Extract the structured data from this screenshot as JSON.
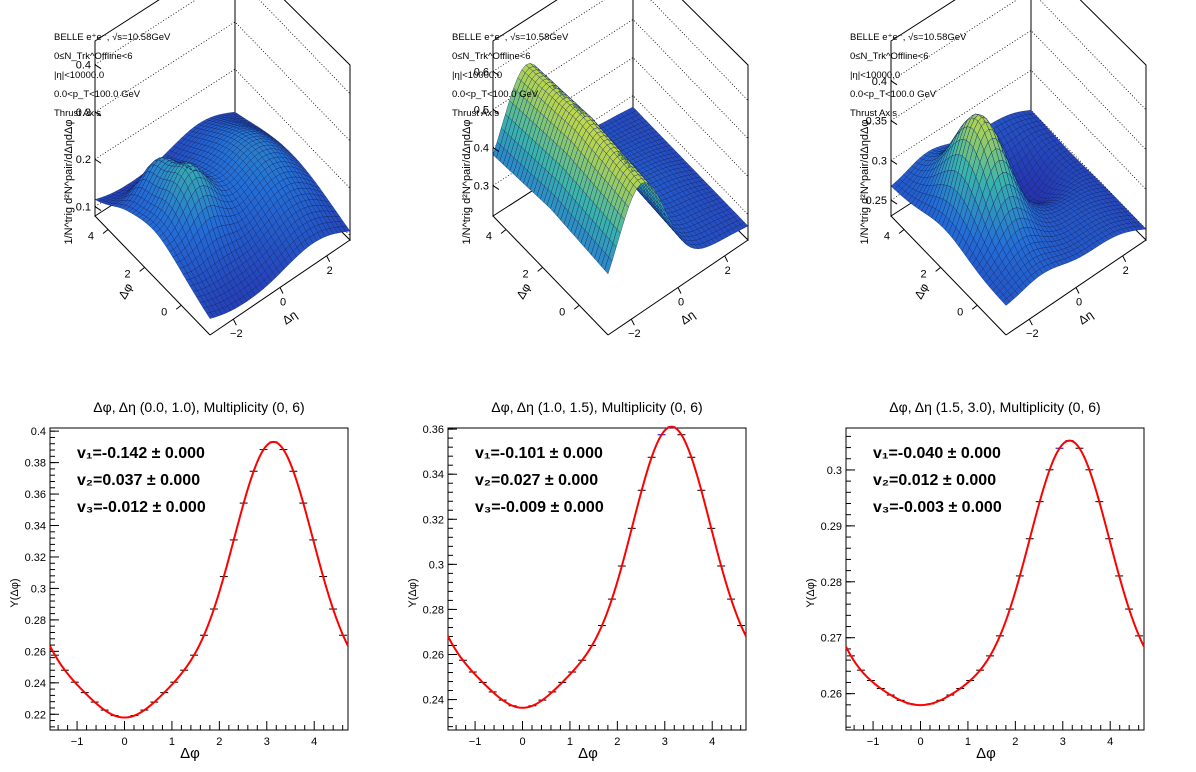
{
  "colors": {
    "fit": "#ff0000",
    "points": "#000000",
    "peak_points": "#0000cc",
    "surface_low": "#2a3fbf",
    "surface_mid": "#3fb6a8",
    "surface_high": "#f8ef3a"
  },
  "chart_data": [
    {
      "type": "surface3d",
      "info_lines": [
        "BELLE e⁺e⁻, √s=10.58GeV",
        "0≤N_Trk^Offline<6",
        "|η|<10000.0",
        "0.0<p_T<100.0 GeV",
        "Thrust Axis"
      ],
      "zlabel": "1/N^trig d²N^pair/dΔηdΔφ",
      "xlabel": "Δφ",
      "ylabel": "Δη",
      "xticks": [
        "0",
        "2",
        "4"
      ],
      "yticks": [
        "−2",
        "0",
        "2"
      ],
      "zticks": [
        "0.1",
        "0.2",
        "0.3",
        "0.4"
      ],
      "zlim": [
        0.08,
        0.45
      ]
    },
    {
      "type": "surface3d",
      "info_lines": [
        "BELLE e⁺e⁻, √s=10.58GeV",
        "0≤N_Trk^Offline<6",
        "|η|<10000.0",
        "0.0<p_T<100.0 GeV",
        "Thrust Axis"
      ],
      "zlabel": "1/N^trig d²N^pair/dΔηdΔφ",
      "xlabel": "Δφ",
      "ylabel": "Δη",
      "xticks": [
        "0",
        "2",
        "4"
      ],
      "yticks": [
        "−2",
        "0",
        "2"
      ],
      "zticks": [
        "0.3",
        "0.4",
        "0.5",
        "0.6"
      ],
      "zlim": [
        0.22,
        0.68
      ]
    },
    {
      "type": "surface3d",
      "info_lines": [
        "BELLE e⁺e⁻, √s=10.58GeV",
        "0≤N_Trk^Offline<6",
        "|η|<10000.0",
        "0.0<p_T<100.0 GeV",
        "Thrust Axis"
      ],
      "zlabel": "1/N^trig d²N^pair/dΔηdΔφ",
      "xlabel": "Δφ",
      "ylabel": "Δη",
      "xticks": [
        "0",
        "2",
        "4"
      ],
      "yticks": [
        "−2",
        "0",
        "2"
      ],
      "zticks": [
        "0.25",
        "0.3",
        "0.35",
        "0.4"
      ],
      "zlim": [
        0.23,
        0.45
      ]
    },
    {
      "type": "scatter",
      "title": "Δφ, Δη (0.0, 1.0), Multiplicity (0, 6)",
      "xlabel": "Δφ",
      "ylabel": "Y(Δφ)",
      "xlim": [
        -1.5708,
        4.7124
      ],
      "ylim": [
        0.21,
        0.402
      ],
      "xticks": [
        -1,
        0,
        1,
        2,
        3,
        4
      ],
      "yticks": [
        0.22,
        0.24,
        0.26,
        0.28,
        0.3,
        0.32,
        0.34,
        0.36,
        0.38,
        0.4
      ],
      "ytick_labels": [
        "0.22",
        "0.24",
        "0.26",
        "0.28",
        "0.3",
        "0.32",
        "0.34",
        "0.36",
        "0.38",
        "0.4"
      ],
      "fit": {
        "c0": 0.2845,
        "v1": -0.142,
        "v2": 0.037,
        "v3": -0.012
      },
      "annotations": [
        "v₁=-0.142 ± 0.000",
        "v₂=0.037 ± 0.000",
        "v₃=-0.012 ± 0.000"
      ],
      "points_from_fit": true,
      "n_points": 30
    },
    {
      "type": "scatter",
      "title": "Δφ, Δη (1.0, 1.5), Multiplicity (0, 6)",
      "xlabel": "Δφ",
      "ylabel": "Y(Δφ)",
      "xlim": [
        -1.5708,
        4.7124
      ],
      "ylim": [
        0.2265,
        0.3605
      ],
      "xticks": [
        -1,
        0,
        1,
        2,
        3,
        4
      ],
      "yticks": [
        0.24,
        0.26,
        0.28,
        0.3,
        0.32,
        0.34,
        0.36
      ],
      "ytick_labels": [
        "0.24",
        "0.26",
        "0.28",
        "0.3",
        "0.32",
        "0.34",
        "0.36"
      ],
      "fit": {
        "c0": 0.2834,
        "v1": -0.101,
        "v2": 0.027,
        "v3": -0.009
      },
      "annotations": [
        "v₁=-0.101 ± 0.000",
        "v₂=0.027 ± 0.000",
        "v₃=-0.009 ± 0.000"
      ],
      "points_from_fit": true,
      "n_points": 30
    },
    {
      "type": "scatter",
      "title": "Δφ, Δη (1.5, 3.0), Multiplicity (0, 6)",
      "xlabel": "Δφ",
      "ylabel": "Y(Δφ)",
      "xlim": [
        -1.5708,
        4.7124
      ],
      "ylim": [
        0.2535,
        0.3075
      ],
      "xticks": [
        -1,
        0,
        1,
        2,
        3,
        4
      ],
      "yticks": [
        0.26,
        0.27,
        0.28,
        0.29,
        0.3
      ],
      "ytick_labels": [
        "0.26",
        "0.27",
        "0.28",
        "0.29",
        "0.3"
      ],
      "fit": {
        "c0": 0.275,
        "v1": -0.04,
        "v2": 0.012,
        "v3": -0.003
      },
      "annotations": [
        "v₁=-0.040 ± 0.000",
        "v₂=0.012 ± 0.000",
        "v₃=-0.003 ± 0.000"
      ],
      "points_from_fit": true,
      "n_points": 30
    }
  ]
}
